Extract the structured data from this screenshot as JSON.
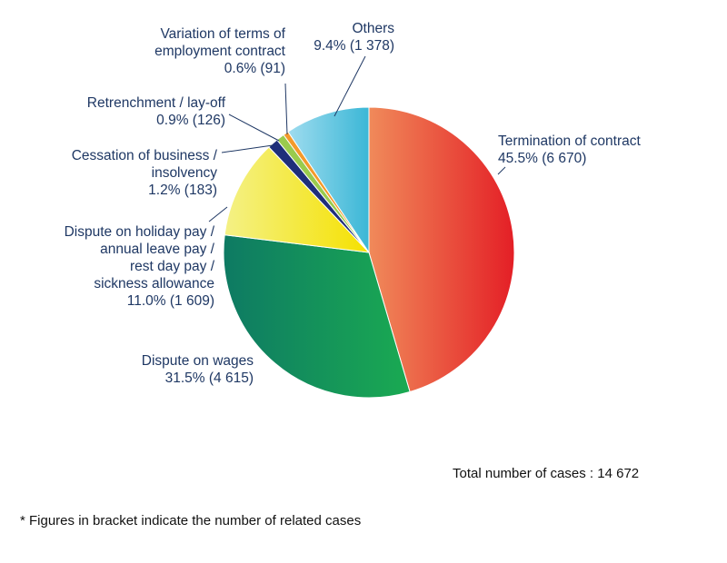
{
  "chart_data": {
    "type": "pie",
    "title": "",
    "start_angle_deg": 0,
    "direction": "clockwise",
    "slices": [
      {
        "label_lines": [
          "Termination of contract"
        ],
        "value_text": "45.5% (6 670)",
        "percent": 45.5,
        "count": 6670,
        "color_start": "#f08a5a",
        "color_end": "#e41f26"
      },
      {
        "label_lines": [
          "Dispute on wages"
        ],
        "value_text": "31.5% (4 615)",
        "percent": 31.5,
        "count": 4615,
        "color_start": "#0e7a63",
        "color_end": "#1aaa52"
      },
      {
        "label_lines": [
          "Dispute on holiday pay /",
          "annual leave pay /",
          "rest day pay /",
          "sickness allowance"
        ],
        "value_text": "11.0% (1 609)",
        "percent": 11.0,
        "count": 1609,
        "color_start": "#f4f186",
        "color_end": "#f5e100"
      },
      {
        "label_lines": [
          "Cessation of business /",
          "insolvency"
        ],
        "value_text": "1.2% (183)",
        "percent": 1.2,
        "count": 183,
        "color_start": "#1f2f7a",
        "color_end": "#1f2f7a"
      },
      {
        "label_lines": [
          "Retrenchment / lay-off"
        ],
        "value_text": "0.9% (126)",
        "percent": 0.9,
        "count": 126,
        "color_start": "#9acb4d",
        "color_end": "#9acb4d"
      },
      {
        "label_lines": [
          "Variation of terms of",
          "employment contract"
        ],
        "value_text": "0.6% (91)",
        "percent": 0.6,
        "count": 91,
        "color_start": "#f39a2b",
        "color_end": "#f39a2b"
      },
      {
        "label_lines": [
          "Others"
        ],
        "value_text": "9.4% (1 378)",
        "percent": 9.4,
        "count": 1378,
        "color_start": "#9fdcef",
        "color_end": "#3bb7d6"
      }
    ],
    "total_text": "Total number of cases : 14 672",
    "total": 14672,
    "footnote": "* Figures in bracket indicate the number of related cases",
    "label_color": "#1f3864"
  }
}
